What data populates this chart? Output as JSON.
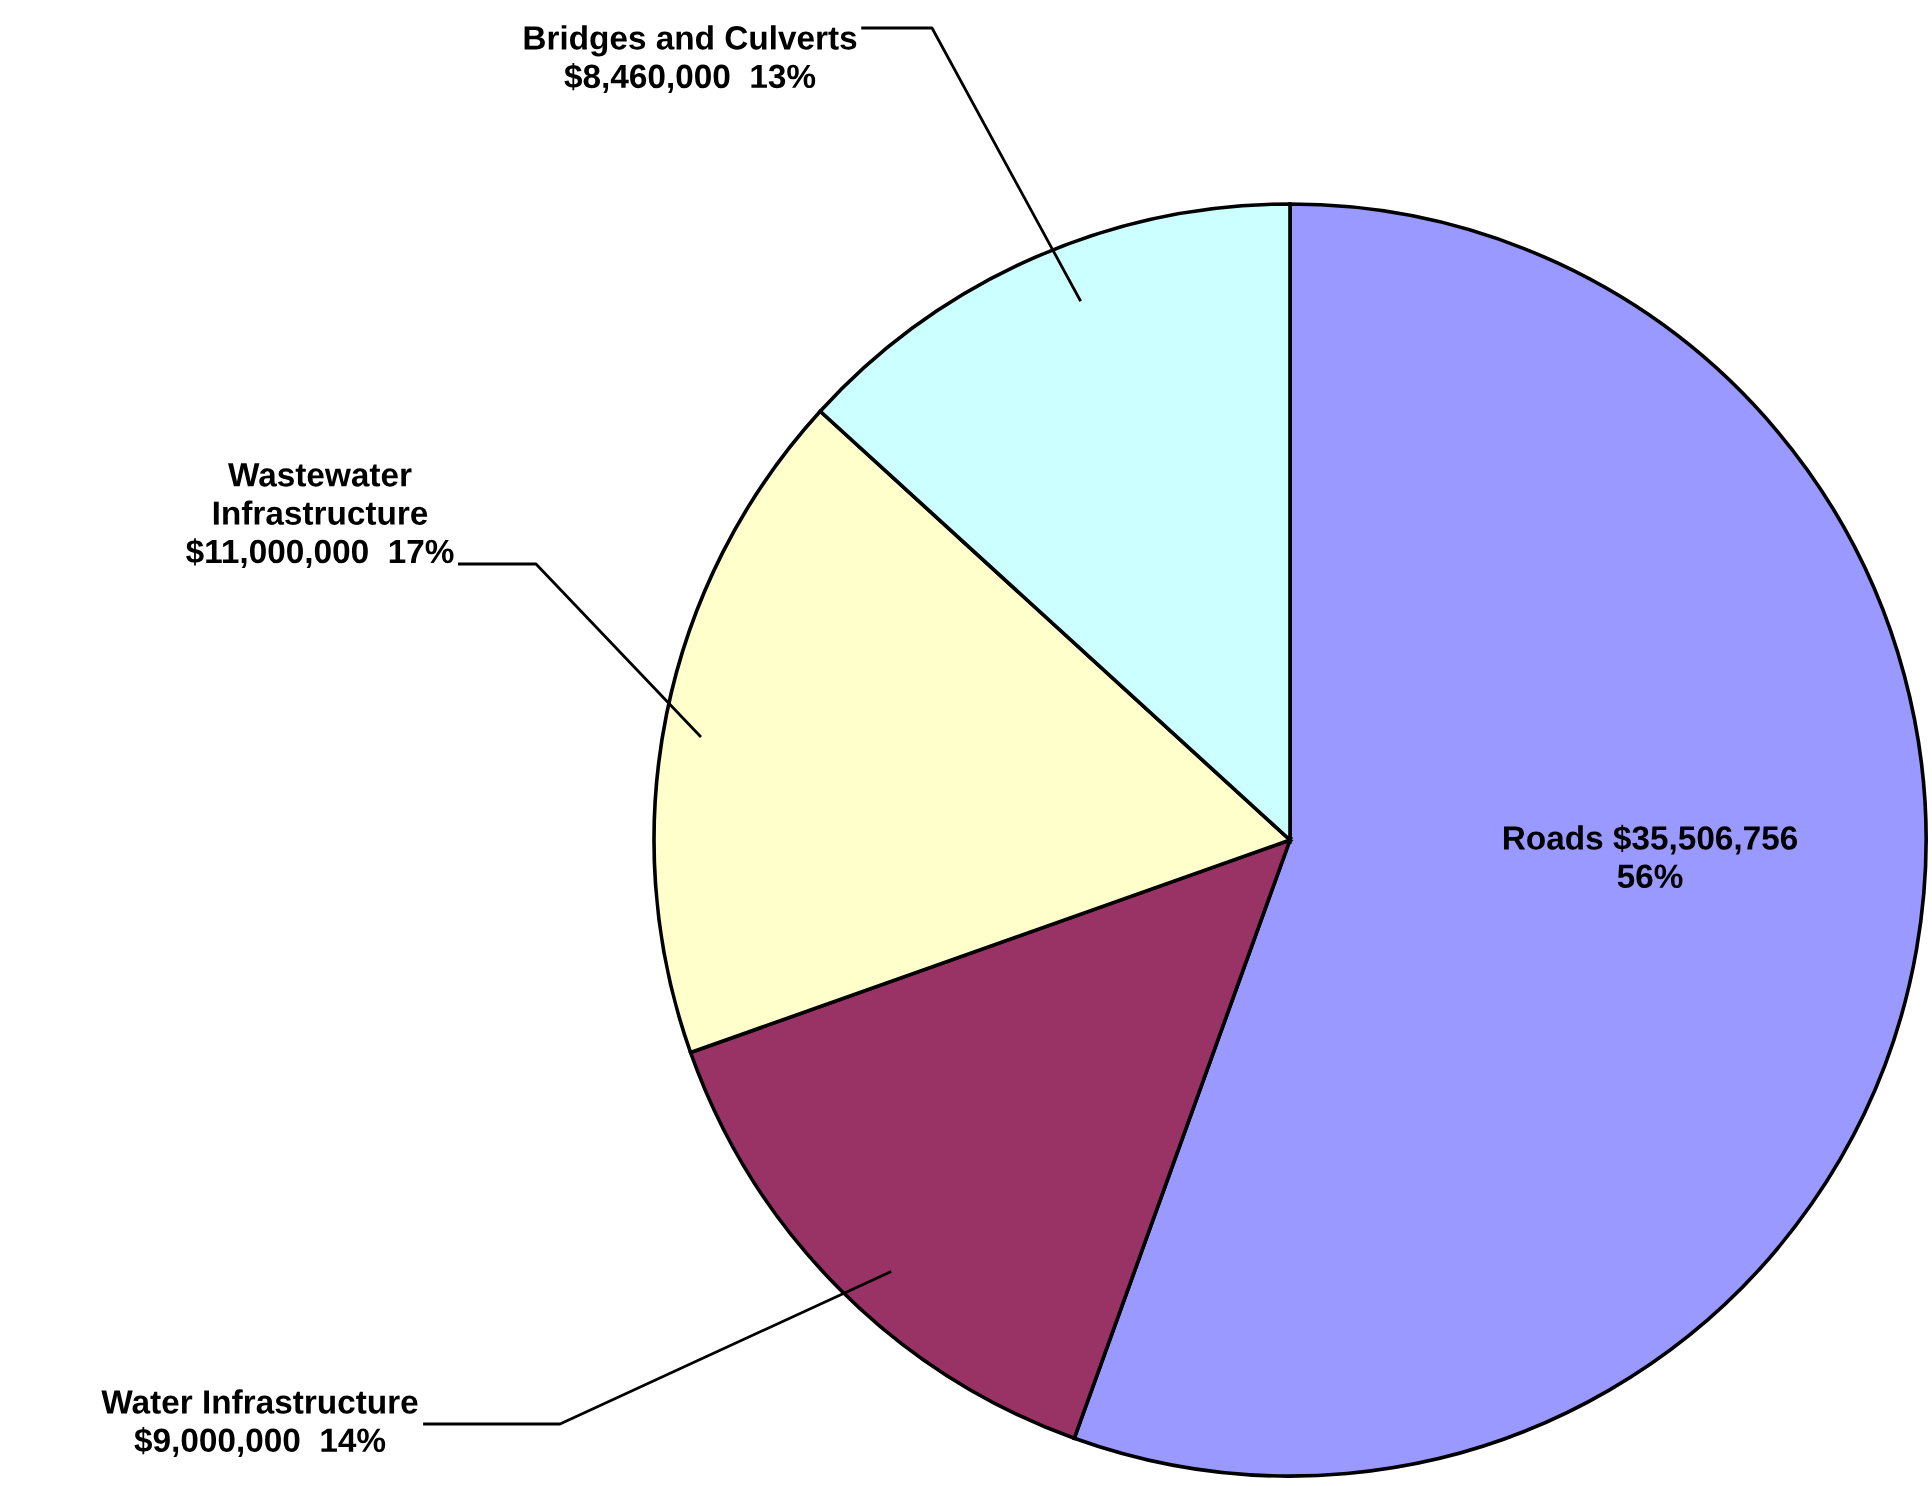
{
  "chart_data": {
    "type": "pie",
    "categories": [
      "Roads",
      "Water Infrastructure",
      "Wastewater Infrastructure",
      "Bridges and Culverts"
    ],
    "values": [
      35506756,
      9000000,
      11000000,
      8460000
    ],
    "colors": [
      "#9999ff",
      "#993366",
      "#ffffcc",
      "#ccffff"
    ],
    "value_labels": [
      "$35,506,756 56%",
      "$9,000,000  14%",
      "$11,000,000  17%",
      "$8,460,000  13%"
    ],
    "legend": false
  }
}
